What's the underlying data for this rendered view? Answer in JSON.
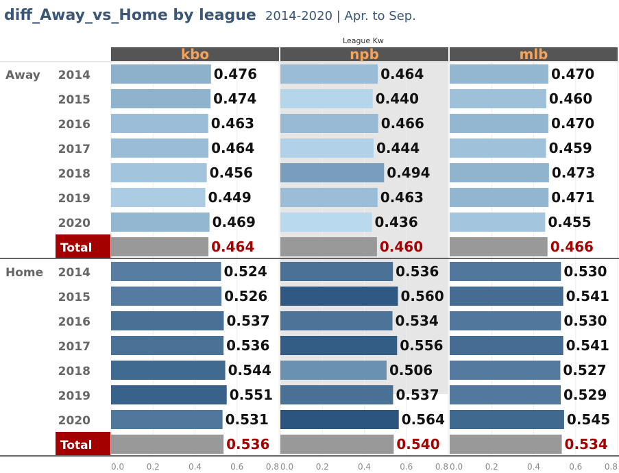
{
  "title": "diff_Away_vs_Home by league",
  "subtitle": "2014-2020 | Apr. to Sep.",
  "column_header_label": "League Kw",
  "colors": {
    "header_bg": "#555555",
    "header_text": "#f5a35a",
    "total_badge": "#a50000",
    "total_value": "#a50000",
    "total_bar": "#999999",
    "npb_shade": "#e6e6e6"
  },
  "chart_data": {
    "type": "bar",
    "orientation": "horizontal",
    "leagues": [
      "kbo",
      "npb",
      "mlb"
    ],
    "groups": [
      {
        "name": "Away",
        "rows": [
          {
            "label": "2014",
            "values": [
              0.476,
              0.464,
              0.47
            ]
          },
          {
            "label": "2015",
            "values": [
              0.474,
              0.44,
              0.46
            ]
          },
          {
            "label": "2016",
            "values": [
              0.463,
              0.466,
              0.47
            ]
          },
          {
            "label": "2017",
            "values": [
              0.464,
              0.444,
              0.459
            ]
          },
          {
            "label": "2018",
            "values": [
              0.456,
              0.494,
              0.473
            ]
          },
          {
            "label": "2019",
            "values": [
              0.449,
              0.463,
              0.471
            ]
          },
          {
            "label": "2020",
            "values": [
              0.469,
              0.436,
              0.455
            ]
          }
        ],
        "total": {
          "label": "Total",
          "values": [
            0.464,
            0.46,
            0.466
          ]
        }
      },
      {
        "name": "Home",
        "rows": [
          {
            "label": "2014",
            "values": [
              0.524,
              0.536,
              0.53
            ]
          },
          {
            "label": "2015",
            "values": [
              0.526,
              0.56,
              0.541
            ]
          },
          {
            "label": "2016",
            "values": [
              0.537,
              0.534,
              0.53
            ]
          },
          {
            "label": "2017",
            "values": [
              0.536,
              0.556,
              0.541
            ]
          },
          {
            "label": "2018",
            "values": [
              0.544,
              0.506,
              0.527
            ]
          },
          {
            "label": "2019",
            "values": [
              0.551,
              0.537,
              0.529
            ]
          },
          {
            "label": "2020",
            "values": [
              0.531,
              0.564,
              0.545
            ]
          }
        ],
        "total": {
          "label": "Total",
          "values": [
            0.536,
            0.54,
            0.534
          ]
        }
      }
    ],
    "x_ticks": [
      "0.0",
      "0.2",
      "0.4",
      "0.6",
      "0.8"
    ],
    "xlim": [
      0,
      0.8
    ],
    "color_scale": {
      "low": 0.436,
      "high": 0.564,
      "low_color": "#b9d9ee",
      "high_color": "#2b557f"
    }
  }
}
